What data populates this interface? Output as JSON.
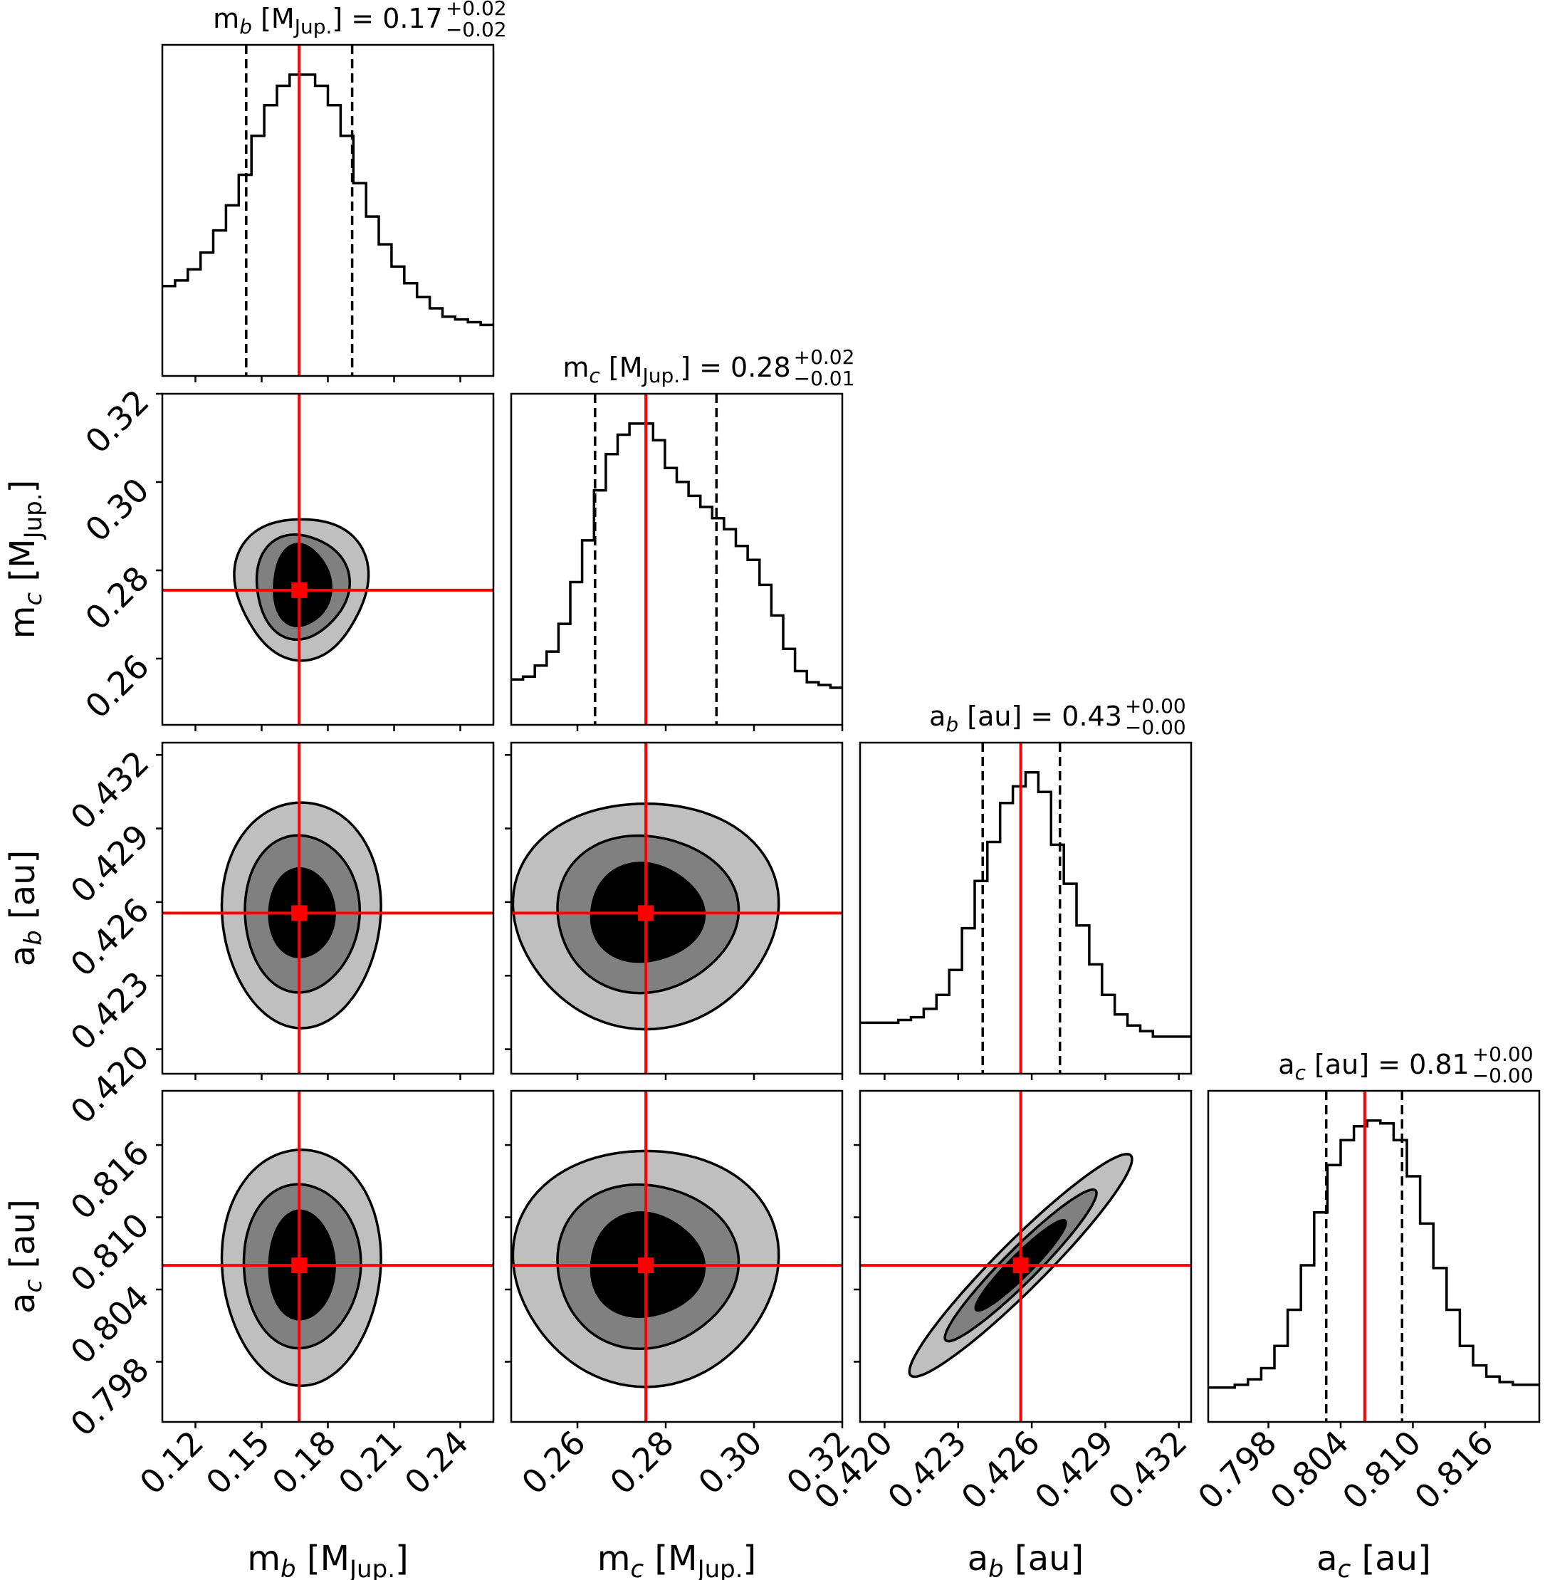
{
  "chart_data": {
    "type": "corner",
    "colors": {
      "truth": "#ff0000",
      "contour_outer": "#bfbfbf",
      "contour_mid": "#808080",
      "contour_inner": "#000000",
      "line": "#000000"
    },
    "parameters": [
      {
        "name": "m_b",
        "axis_label": {
          "base": "m",
          "sub": "b",
          "bracket_open": " [M",
          "unit_sub": "Jup.",
          "bracket_close": "]"
        },
        "title": {
          "value": "0.17",
          "plus": "+0.02",
          "minus": "−0.02"
        },
        "range": [
          0.105,
          0.255
        ],
        "ticks": [
          0.12,
          0.15,
          0.18,
          0.21,
          0.24
        ],
        "tick_labels": [
          "0.12",
          "0.15",
          "0.18",
          "0.21",
          "0.24"
        ],
        "truth": 0.167,
        "quantiles": [
          0.143,
          0.191
        ],
        "hist": [
          0.24,
          0.26,
          0.3,
          0.36,
          0.44,
          0.53,
          0.64,
          0.78,
          0.89,
          0.96,
          1.0,
          1.0,
          0.96,
          0.89,
          0.78,
          0.61,
          0.49,
          0.39,
          0.31,
          0.25,
          0.2,
          0.16,
          0.13,
          0.12,
          0.11,
          0.1
        ]
      },
      {
        "name": "m_c",
        "axis_label": {
          "base": "m",
          "sub": "c",
          "bracket_open": " [M",
          "unit_sub": "Jup.",
          "bracket_close": "]"
        },
        "title": {
          "value": "0.28",
          "plus": "+0.02",
          "minus": "−0.01"
        },
        "range": [
          0.245,
          0.32
        ],
        "ticks": [
          0.26,
          0.28,
          0.3,
          0.32
        ],
        "tick_labels": [
          "0.26",
          "0.28",
          "0.30",
          "0.32"
        ],
        "truth": 0.2755,
        "quantiles": [
          0.264,
          0.2915
        ],
        "hist": [
          0.08,
          0.09,
          0.13,
          0.18,
          0.28,
          0.43,
          0.58,
          0.76,
          0.89,
          0.96,
          1.0,
          1.0,
          0.94,
          0.84,
          0.79,
          0.74,
          0.7,
          0.66,
          0.62,
          0.56,
          0.51,
          0.42,
          0.31,
          0.19,
          0.11,
          0.07,
          0.06,
          0.05
        ]
      },
      {
        "name": "a_b",
        "axis_label": {
          "base": "a",
          "sub": "b",
          "bracket_open": " [au",
          "unit_sub": "",
          "bracket_close": "]"
        },
        "title": {
          "value": "0.43",
          "plus": "+0.00",
          "minus": "−0.00"
        },
        "range": [
          0.419,
          0.4325
        ],
        "ticks": [
          0.42,
          0.423,
          0.426,
          0.429,
          0.432
        ],
        "tick_labels": [
          "0.420",
          "0.423",
          "0.426",
          "0.429",
          "0.432"
        ],
        "truth": 0.42555,
        "quantiles": [
          0.424,
          0.42715
        ],
        "hist": [
          0.1,
          0.1,
          0.1,
          0.11,
          0.12,
          0.15,
          0.2,
          0.29,
          0.44,
          0.61,
          0.75,
          0.89,
          0.95,
          1.0,
          0.93,
          0.74,
          0.6,
          0.45,
          0.31,
          0.2,
          0.13,
          0.09,
          0.07,
          0.05,
          0.05,
          0.05
        ]
      },
      {
        "name": "a_c",
        "axis_label": {
          "base": "a",
          "sub": "c",
          "bracket_open": " [au",
          "unit_sub": "",
          "bracket_close": "]"
        },
        "title": {
          "value": "0.81",
          "plus": "+0.00",
          "minus": "−0.00"
        },
        "range": [
          0.793,
          0.8205
        ],
        "ticks": [
          0.798,
          0.804,
          0.81,
          0.816
        ],
        "tick_labels": [
          "0.798",
          "0.804",
          "0.810",
          "0.816"
        ],
        "truth": 0.806,
        "quantiles": [
          0.8028,
          0.8091
        ],
        "hist": [
          0.04,
          0.04,
          0.05,
          0.07,
          0.11,
          0.19,
          0.32,
          0.48,
          0.67,
          0.84,
          0.93,
          0.98,
          1.0,
          0.99,
          0.93,
          0.8,
          0.63,
          0.47,
          0.32,
          0.19,
          0.12,
          0.08,
          0.06,
          0.05,
          0.05
        ]
      }
    ],
    "contours": [
      {
        "row": 1,
        "col": 0,
        "center": [
          0.168,
          0.2765
        ],
        "levels": [
          {
            "sx": 0.03,
            "sy": 0.016,
            "wave": 0.06,
            "color": "outer"
          },
          {
            "sx": 0.021,
            "sy": 0.0118,
            "wave": 0.05,
            "color": "mid"
          },
          {
            "sx": 0.0129,
            "sy": 0.0092,
            "wave": 0.05,
            "color": "inner"
          }
        ]
      },
      {
        "row": 2,
        "col": 0,
        "center": [
          0.168,
          0.42555
        ],
        "levels": [
          {
            "sx": 0.036,
            "sy": 0.0046,
            "wave": 0.02,
            "color": "outer"
          },
          {
            "sx": 0.026,
            "sy": 0.0032,
            "wave": 0.02,
            "color": "mid"
          },
          {
            "sx": 0.0148,
            "sy": 0.0018,
            "wave": 0.02,
            "color": "inner"
          }
        ]
      },
      {
        "row": 2,
        "col": 1,
        "center": [
          0.2755,
          0.42555
        ],
        "levels": [
          {
            "sx": 0.03,
            "sy": 0.0046,
            "wave": 0.03,
            "color": "outer"
          },
          {
            "sx": 0.0205,
            "sy": 0.0032,
            "wave": 0.03,
            "color": "mid"
          },
          {
            "sx": 0.0128,
            "sy": 0.002,
            "wave": 0.04,
            "color": "inner"
          }
        ]
      },
      {
        "row": 3,
        "col": 0,
        "center": [
          0.168,
          0.806
        ],
        "levels": [
          {
            "sx": 0.036,
            "sy": 0.0098,
            "wave": 0.02,
            "color": "outer"
          },
          {
            "sx": 0.0265,
            "sy": 0.0068,
            "wave": 0.02,
            "color": "mid"
          },
          {
            "sx": 0.0148,
            "sy": 0.0045,
            "wave": 0.02,
            "color": "inner"
          }
        ]
      },
      {
        "row": 3,
        "col": 1,
        "center": [
          0.2755,
          0.806
        ],
        "levels": [
          {
            "sx": 0.03,
            "sy": 0.0098,
            "wave": 0.03,
            "color": "outer"
          },
          {
            "sx": 0.0205,
            "sy": 0.0068,
            "wave": 0.03,
            "color": "mid"
          },
          {
            "sx": 0.0128,
            "sy": 0.0043,
            "wave": 0.04,
            "color": "inner"
          }
        ]
      },
      {
        "row": 3,
        "col": 2,
        "center": [
          0.42555,
          0.806
        ],
        "levels": [
          {
            "major": 0.94,
            "minor": 0.145,
            "color": "outer"
          },
          {
            "major": 0.64,
            "minor": 0.1,
            "color": "mid"
          },
          {
            "major": 0.38,
            "minor": 0.065,
            "color": "inner"
          }
        ]
      }
    ]
  }
}
